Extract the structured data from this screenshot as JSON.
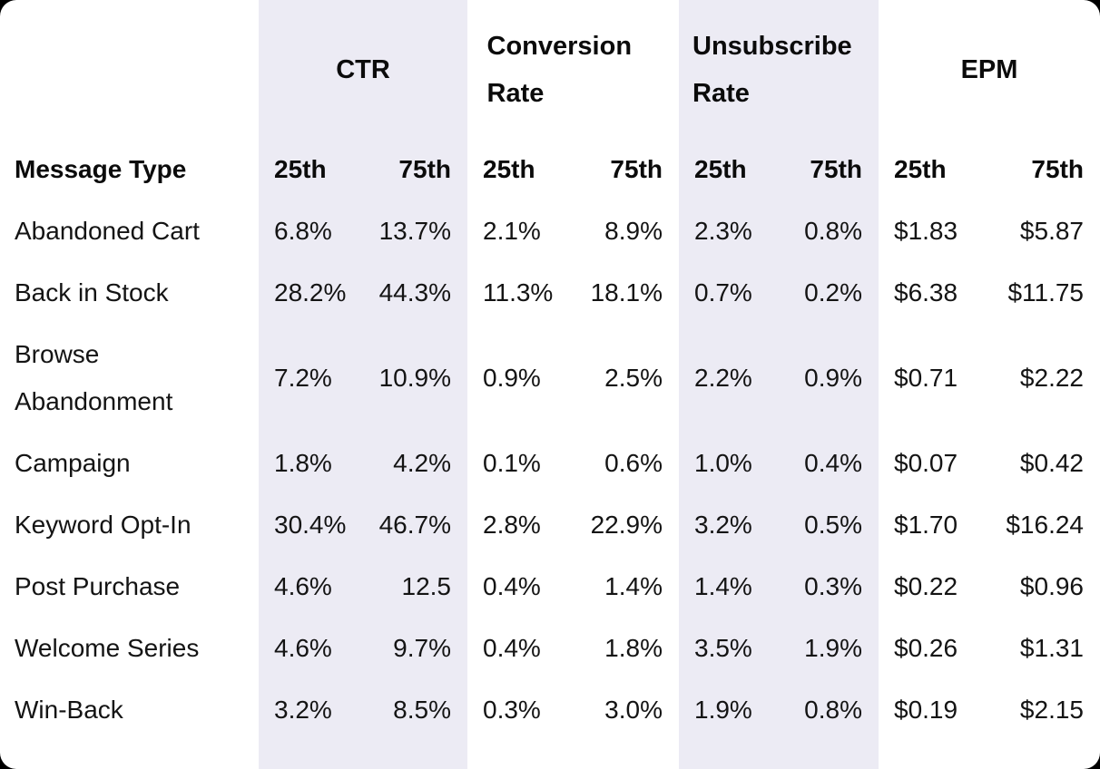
{
  "chart_data": {
    "type": "table",
    "title": "",
    "row_label_header": "Message Type",
    "column_groups": [
      "CTR",
      "Conversion Rate",
      "Unsubscribe Rate",
      "EPM"
    ],
    "sub_columns": [
      "25th",
      "75th"
    ],
    "rows": [
      {
        "label": "Abandoned Cart",
        "values": [
          "6.8%",
          "13.7%",
          "2.1%",
          "8.9%",
          "2.3%",
          "0.8%",
          "$1.83",
          "$5.87"
        ]
      },
      {
        "label": "Back in Stock",
        "values": [
          "28.2%",
          "44.3%",
          "11.3%",
          "18.1%",
          "0.7%",
          "0.2%",
          "$6.38",
          "$11.75"
        ]
      },
      {
        "label": "Browse Abandonment",
        "values": [
          "7.2%",
          "10.9%",
          "0.9%",
          "2.5%",
          "2.2%",
          "0.9%",
          "$0.71",
          "$2.22"
        ]
      },
      {
        "label": "Campaign",
        "values": [
          "1.8%",
          "4.2%",
          "0.1%",
          "0.6%",
          "1.0%",
          "0.4%",
          "$0.07",
          "$0.42"
        ]
      },
      {
        "label": "Keyword Opt-In",
        "values": [
          "30.4%",
          "46.7%",
          "2.8%",
          "22.9%",
          "3.2%",
          "0.5%",
          "$1.70",
          "$16.24"
        ]
      },
      {
        "label": "Post Purchase",
        "values": [
          "4.6%",
          "12.5",
          "0.4%",
          "1.4%",
          "1.4%",
          "0.3%",
          "$0.22",
          "$0.96"
        ]
      },
      {
        "label": "Welcome Series",
        "values": [
          "4.6%",
          "9.7%",
          "0.4%",
          "1.8%",
          "3.5%",
          "1.9%",
          "$0.26",
          "$1.31"
        ]
      },
      {
        "label": "Win-Back",
        "values": [
          "3.2%",
          "8.5%",
          "0.3%",
          "3.0%",
          "1.9%",
          "0.8%",
          "$0.19",
          "$2.15"
        ]
      }
    ],
    "layout_hints": {
      "banded_column_groups": [
        "CTR",
        "Unsubscribe Rate"
      ],
      "alignment": {
        "sub_column_25th": "left",
        "sub_column_75th": "right"
      }
    }
  },
  "colors": {
    "band": "#ECEBF4",
    "card_background": "#FFFFFF",
    "outer_background": "#000000",
    "header_text": "#0B0B0B",
    "body_text": "#141414"
  }
}
